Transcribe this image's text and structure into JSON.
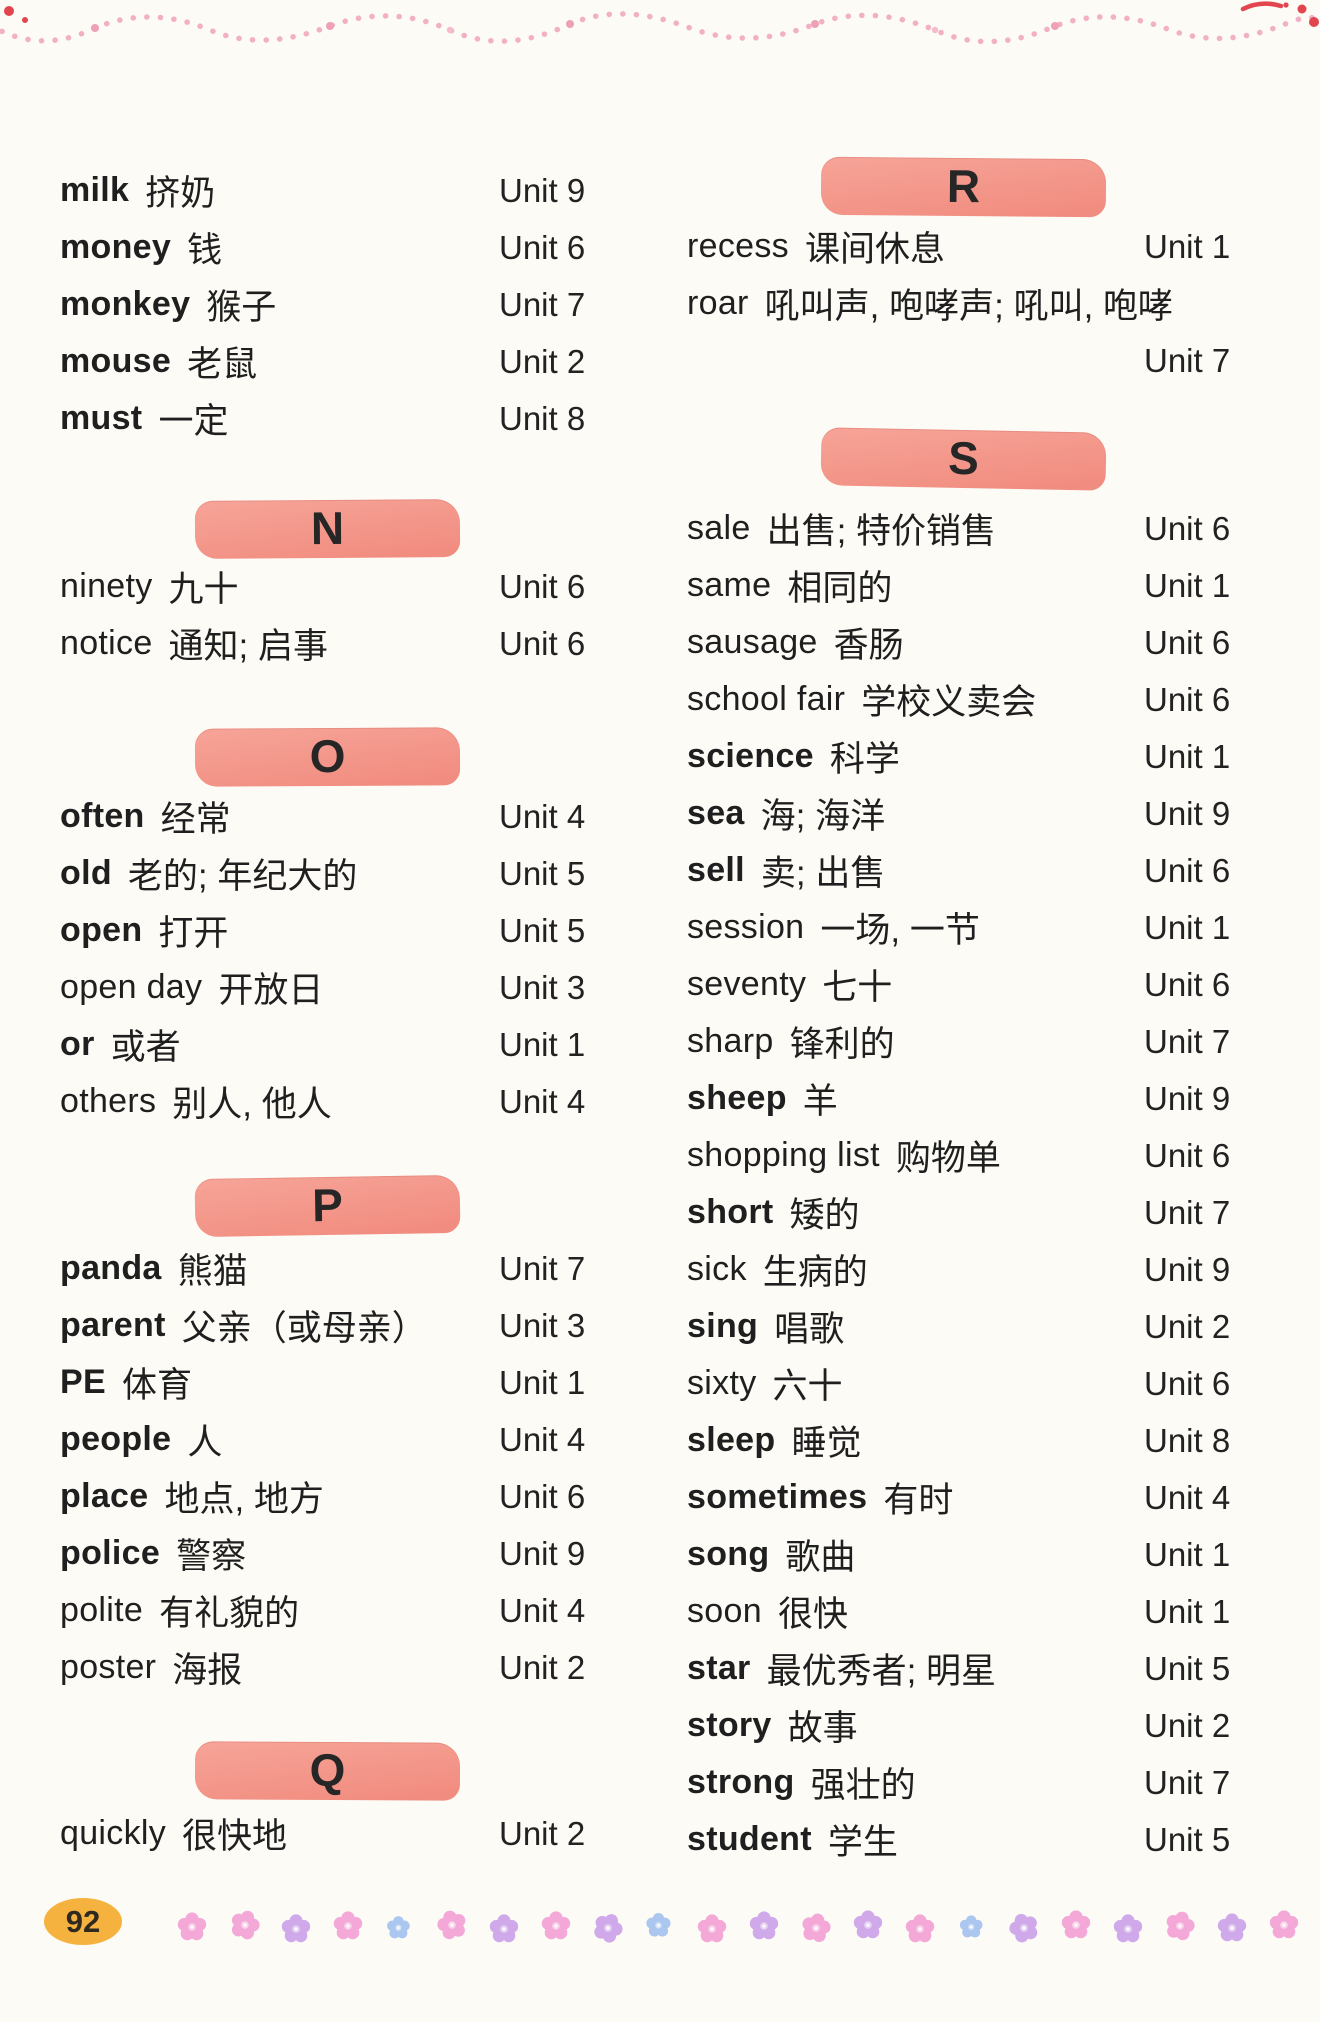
{
  "page": {
    "number": "92"
  },
  "colors": {
    "band_pink": "#f29a8c",
    "badge_yellow": "#f6b23e",
    "garland_pink": "#f2b0c4",
    "accent_red": "#e2454e",
    "flower_pink": "#f3a8d8",
    "flower_purple": "#cfa9e9",
    "flower_blue": "#abc6ef",
    "text": "#1f1f1f"
  },
  "columns": {
    "left": {
      "sections": [
        {
          "id": "m",
          "letter": "",
          "entries": [
            {
              "word": "milk",
              "cn": "挤奶",
              "unit": "Unit 9",
              "bold": true
            },
            {
              "word": "money",
              "cn": "钱",
              "unit": "Unit 6",
              "bold": true
            },
            {
              "word": "monkey",
              "cn": "猴子",
              "unit": "Unit 7",
              "bold": true
            },
            {
              "word": "mouse",
              "cn": "老鼠",
              "unit": "Unit 2",
              "bold": true
            },
            {
              "word": "must",
              "cn": "一定",
              "unit": "Unit 8",
              "bold": true
            }
          ]
        },
        {
          "id": "n",
          "letter": "N",
          "entries": [
            {
              "word": "ninety",
              "cn": "九十",
              "unit": "Unit 6",
              "bold": false
            },
            {
              "word": "notice",
              "cn": "通知; 启事",
              "unit": "Unit 6",
              "bold": false
            }
          ]
        },
        {
          "id": "o",
          "letter": "O",
          "entries": [
            {
              "word": "often",
              "cn": "经常",
              "unit": "Unit 4",
              "bold": true
            },
            {
              "word": "old",
              "cn": "老的; 年纪大的",
              "unit": "Unit 5",
              "bold": true
            },
            {
              "word": "open",
              "cn": "打开",
              "unit": "Unit 5",
              "bold": true
            },
            {
              "word": "open day",
              "cn": "开放日",
              "unit": "Unit 3",
              "bold": false
            },
            {
              "word": "or",
              "cn": "或者",
              "unit": "Unit 1",
              "bold": true
            },
            {
              "word": "others",
              "cn": "别人, 他人",
              "unit": "Unit 4",
              "bold": false
            }
          ]
        },
        {
          "id": "p",
          "letter": "P",
          "entries": [
            {
              "word": "panda",
              "cn": "熊猫",
              "unit": "Unit 7",
              "bold": true
            },
            {
              "word": "parent",
              "cn": "父亲（或母亲）",
              "unit": "Unit 3",
              "bold": true
            },
            {
              "word": "PE",
              "cn": "体育",
              "unit": "Unit 1",
              "bold": true
            },
            {
              "word": "people",
              "cn": "人",
              "unit": "Unit 4",
              "bold": true
            },
            {
              "word": "place",
              "cn": "地点, 地方",
              "unit": "Unit 6",
              "bold": true
            },
            {
              "word": "police",
              "cn": "警察",
              "unit": "Unit 9",
              "bold": true
            },
            {
              "word": "polite",
              "cn": "有礼貌的",
              "unit": "Unit 4",
              "bold": false
            },
            {
              "word": "poster",
              "cn": "海报",
              "unit": "Unit 2",
              "bold": false
            }
          ]
        },
        {
          "id": "q",
          "letter": "Q",
          "entries": [
            {
              "word": "quickly",
              "cn": "很快地",
              "unit": "Unit 2",
              "bold": false
            }
          ]
        }
      ]
    },
    "right": {
      "sections": [
        {
          "id": "r",
          "letter": "R",
          "entries": [
            {
              "word": "recess",
              "cn": "课间休息",
              "unit": "Unit 1",
              "bold": false
            },
            {
              "word": "roar",
              "cn": "吼叫声, 咆哮声; 吼叫, 咆哮",
              "unit": "Unit 7",
              "bold": false,
              "unit_on_next_line": true
            }
          ]
        },
        {
          "id": "s",
          "letter": "S",
          "entries": [
            {
              "word": "sale",
              "cn": "出售; 特价销售",
              "unit": "Unit 6",
              "bold": false
            },
            {
              "word": "same",
              "cn": "相同的",
              "unit": "Unit 1",
              "bold": false
            },
            {
              "word": "sausage",
              "cn": "香肠",
              "unit": "Unit 6",
              "bold": false
            },
            {
              "word": "school fair",
              "cn": "学校义卖会",
              "unit": "Unit 6",
              "bold": false
            },
            {
              "word": "science",
              "cn": "科学",
              "unit": "Unit 1",
              "bold": true
            },
            {
              "word": "sea",
              "cn": "海; 海洋",
              "unit": "Unit 9",
              "bold": true
            },
            {
              "word": "sell",
              "cn": "卖; 出售",
              "unit": "Unit 6",
              "bold": true
            },
            {
              "word": "session",
              "cn": "一场, 一节",
              "unit": "Unit 1",
              "bold": false
            },
            {
              "word": "seventy",
              "cn": "七十",
              "unit": "Unit 6",
              "bold": false
            },
            {
              "word": "sharp",
              "cn": "锋利的",
              "unit": "Unit 7",
              "bold": false
            },
            {
              "word": "sheep",
              "cn": "羊",
              "unit": "Unit 9",
              "bold": true
            },
            {
              "word": "shopping list",
              "cn": "购物单",
              "unit": "Unit 6",
              "bold": false
            },
            {
              "word": "short",
              "cn": "矮的",
              "unit": "Unit 7",
              "bold": true
            },
            {
              "word": "sick",
              "cn": "生病的",
              "unit": "Unit 9",
              "bold": false
            },
            {
              "word": "sing",
              "cn": "唱歌",
              "unit": "Unit 2",
              "bold": true
            },
            {
              "word": "sixty",
              "cn": "六十",
              "unit": "Unit 6",
              "bold": false
            },
            {
              "word": "sleep",
              "cn": "睡觉",
              "unit": "Unit 8",
              "bold": true
            },
            {
              "word": "sometimes",
              "cn": "有时",
              "unit": "Unit 4",
              "bold": true
            },
            {
              "word": "song",
              "cn": "歌曲",
              "unit": "Unit 1",
              "bold": true
            },
            {
              "word": "soon",
              "cn": "很快",
              "unit": "Unit 1",
              "bold": false
            },
            {
              "word": "star",
              "cn": "最优秀者; 明星",
              "unit": "Unit 5",
              "bold": true
            },
            {
              "word": "story",
              "cn": "故事",
              "unit": "Unit 2",
              "bold": true
            },
            {
              "word": "strong",
              "cn": "强壮的",
              "unit": "Unit 7",
              "bold": true
            },
            {
              "word": "student",
              "cn": "学生",
              "unit": "Unit 5",
              "bold": true
            }
          ]
        }
      ]
    }
  }
}
